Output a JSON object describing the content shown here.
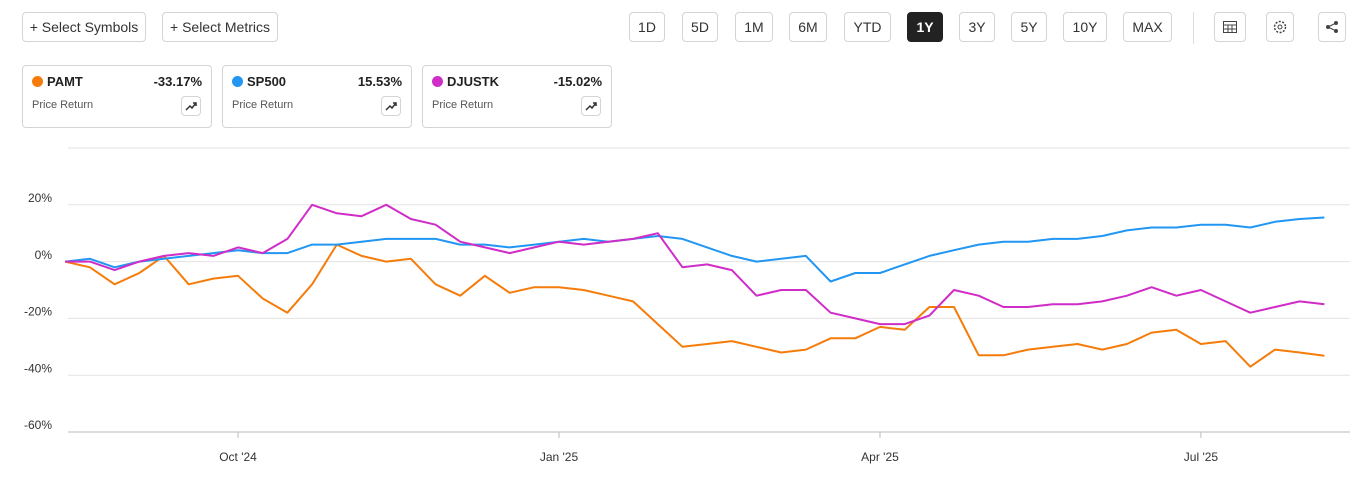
{
  "toolbar": {
    "buttons": [
      "+ Select Symbols",
      "+ Select Metrics"
    ],
    "ranges": [
      "1D",
      "5D",
      "1M",
      "6M",
      "YTD",
      "1Y",
      "3Y",
      "5Y",
      "10Y",
      "MAX"
    ],
    "active": "1Y"
  },
  "cards": [
    {
      "change": "-33.17%",
      "metric": "Price Return"
    },
    {
      "change": "15.53%",
      "metric": "Price Return"
    },
    {
      "change": "-15.02%",
      "metric": "Price Return"
    }
  ],
  "chart_data": {
    "type": "line",
    "categories": [
      null,
      null,
      null,
      null,
      null,
      null,
      null,
      "Oct '24",
      null,
      null,
      null,
      null,
      null,
      null,
      null,
      null,
      null,
      null,
      null,
      null,
      "Jan '25",
      null,
      null,
      null,
      null,
      null,
      null,
      null,
      null,
      null,
      null,
      null,
      null,
      "Apr '25",
      null,
      null,
      null,
      null,
      null,
      null,
      null,
      null,
      null,
      null,
      null,
      null,
      "Jul '25",
      null,
      null,
      null,
      null,
      null
    ],
    "series": [
      {
        "name": "PAMT",
        "color": "#f57c0a",
        "values": [
          0,
          -2,
          -8,
          -4,
          2,
          -8,
          -6,
          -5,
          -13,
          -18,
          -8,
          6,
          2,
          0,
          1,
          -8,
          -12,
          -5,
          -11,
          -9,
          -9,
          -10,
          -12,
          -14,
          -22,
          -30,
          -29,
          -28,
          -30,
          -32,
          -31,
          -27,
          -27,
          -23,
          -24,
          -16,
          -16,
          -33,
          -33,
          -31,
          -30,
          -29,
          -31,
          -29,
          -25,
          -24,
          -29,
          -28,
          -37,
          -31,
          -32,
          -33.17
        ]
      },
      {
        "name": "SP500",
        "color": "#2196f3",
        "values": [
          0,
          1,
          -2,
          0,
          1,
          2,
          3,
          4,
          3,
          3,
          6,
          6,
          7,
          8,
          8,
          8,
          6,
          6,
          5,
          6,
          7,
          8,
          7,
          8,
          9,
          8,
          5,
          2,
          0,
          1,
          2,
          -7,
          -4,
          -4,
          -1,
          2,
          4,
          6,
          7,
          7,
          8,
          8,
          9,
          11,
          12,
          12,
          13,
          13,
          12,
          14,
          15,
          15.53
        ]
      },
      {
        "name": "DJUSTK",
        "color": "#d02cc8",
        "values": [
          0,
          0,
          -3,
          0,
          2,
          3,
          2,
          5,
          3,
          8,
          20,
          17,
          16,
          20,
          15,
          13,
          7,
          5,
          3,
          5,
          7,
          6,
          7,
          8,
          10,
          -2,
          -1,
          -3,
          -12,
          -10,
          -10,
          -18,
          -20,
          -22,
          -22,
          -19,
          -10,
          -12,
          -16,
          -16,
          -15,
          -15,
          -14,
          -12,
          -9,
          -12,
          -10,
          -14,
          -18,
          -16,
          -14,
          -15.02
        ]
      }
    ],
    "ylim": [
      -60,
      40
    ],
    "yticks": [
      {
        "value": 20,
        "label": "20%"
      },
      {
        "value": 0,
        "label": "0%"
      },
      {
        "value": -20,
        "label": "-20%"
      },
      {
        "value": -40,
        "label": "-40%"
      },
      {
        "value": -60,
        "label": "-60%"
      }
    ],
    "grid": true
  }
}
